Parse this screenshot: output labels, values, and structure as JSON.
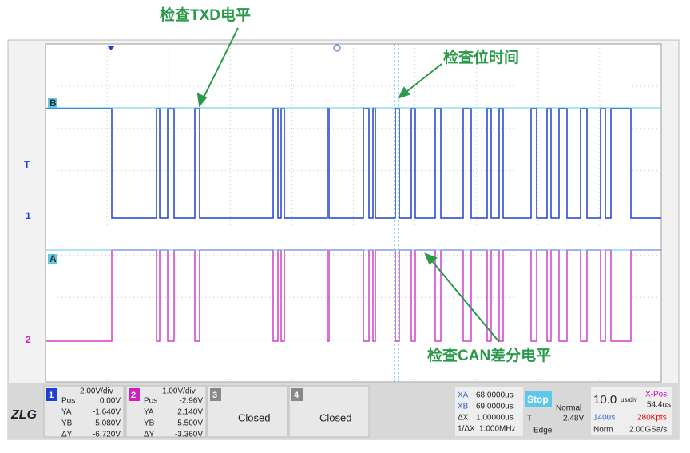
{
  "annotations": [
    "检查TXD电平",
    "检查位时间",
    "检查CAN差分电平"
  ],
  "markers": {
    "b": "B",
    "t": "T",
    "ch1": "1",
    "a": "A",
    "ch2": "2"
  },
  "channels": [
    {
      "number": "1",
      "scale": "2.00V/div",
      "pos_label": "Pos",
      "pos": "0.00V",
      "ya_label": "YA",
      "ya": "-1.640V",
      "yb_label": "YB",
      "yb": "5.080V",
      "dy_label": "ΔY",
      "dy": "-6.720V"
    },
    {
      "number": "2",
      "scale": "1.00V/div",
      "pos_label": "Pos",
      "pos": "-2.96V",
      "ya_label": "YA",
      "ya": "2.140V",
      "yb_label": "YB",
      "yb": "5.500V",
      "dy_label": "ΔY",
      "dy": "-3.360V"
    },
    {
      "number": "3",
      "status": "Closed"
    },
    {
      "number": "4",
      "status": "Closed"
    }
  ],
  "cursors": {
    "xa_label": "XA",
    "xa": "68.0000us",
    "xb_label": "XB",
    "xb": "69.0000us",
    "dx_label": "ΔX",
    "dx": "1.00000us",
    "fx_label": "1/ΔX",
    "fx": "1.000MHz"
  },
  "trigger": {
    "state": "Stop",
    "mode": "Normal",
    "t_label": "T",
    "level": "2.48V",
    "type": "Edge"
  },
  "timebase": {
    "scale": "10.0",
    "unit": "us/div",
    "xpos_label": "X-Pos",
    "xpos": "54.4us",
    "window": "140us",
    "points": "280Kpts",
    "acq": "Norm",
    "rate": "2.00GSa/s"
  }
}
